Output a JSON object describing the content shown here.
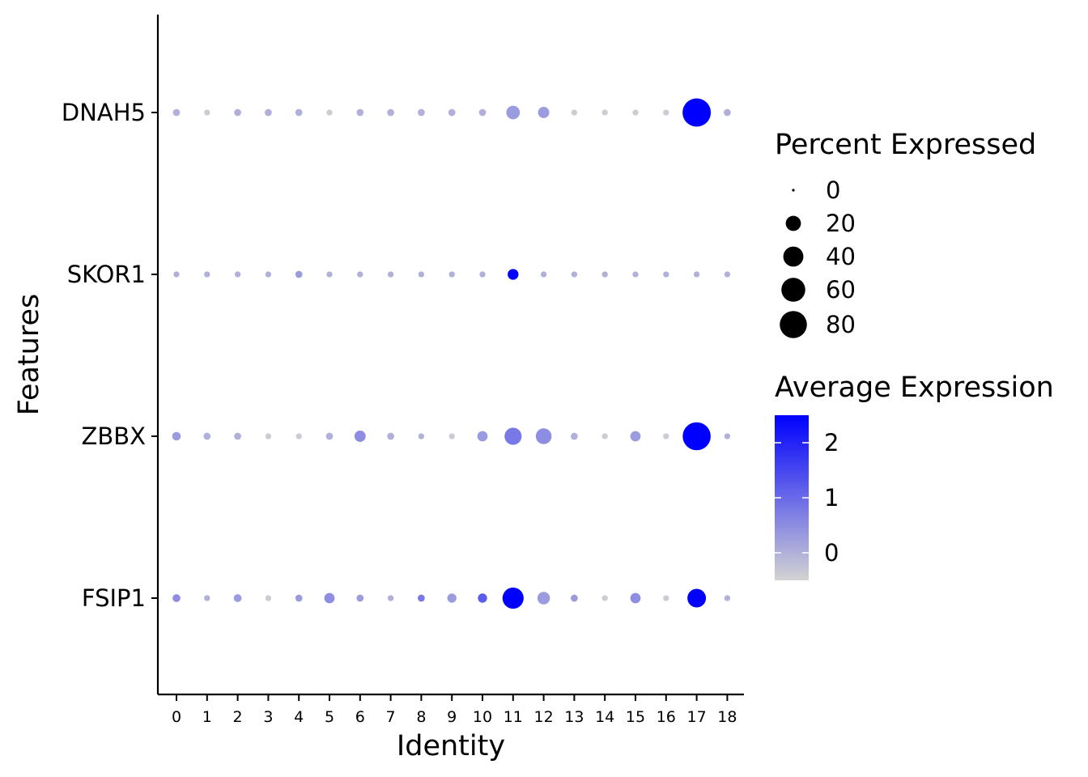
{
  "chart_data": {
    "type": "dot",
    "xlabel": "Identity",
    "ylabel": "Features",
    "categories": [
      "0",
      "1",
      "2",
      "3",
      "4",
      "5",
      "6",
      "7",
      "8",
      "9",
      "10",
      "11",
      "12",
      "13",
      "14",
      "15",
      "16",
      "17",
      "18"
    ],
    "features": [
      "DNAH5",
      "SKOR1",
      "ZBBX",
      "FSIP1"
    ],
    "series": [
      {
        "feature": "DNAH5",
        "percent_expressed": [
          2,
          1,
          2,
          2,
          2,
          1,
          2,
          2,
          2,
          2,
          2,
          15,
          9,
          1,
          1,
          1,
          1,
          88,
          2
        ],
        "average_expression": [
          0,
          -0.4,
          0,
          0,
          0,
          -0.4,
          0,
          0,
          0,
          0,
          0,
          0.3,
          0.3,
          -0.4,
          -0.4,
          -0.4,
          -0.4,
          2.5,
          0
        ]
      },
      {
        "feature": "SKOR1",
        "percent_expressed": [
          1,
          1,
          1,
          1,
          2,
          1,
          1,
          1,
          1,
          1,
          1,
          8,
          1,
          1,
          1,
          1,
          1,
          1,
          1
        ],
        "average_expression": [
          0,
          0,
          0,
          0,
          0.3,
          0,
          0,
          0,
          0,
          0,
          0,
          2.5,
          0,
          0,
          0,
          0,
          0,
          0,
          0
        ]
      },
      {
        "feature": "ZBBX",
        "percent_expressed": [
          4,
          2,
          2,
          1,
          1,
          2,
          9,
          2,
          1,
          1,
          7,
          27,
          22,
          2,
          1,
          7,
          1,
          86,
          1
        ],
        "average_expression": [
          0.3,
          0,
          0,
          -0.4,
          -0.4,
          0,
          0.5,
          0,
          0,
          -0.4,
          0.3,
          0.8,
          0.5,
          0,
          -0.4,
          0.3,
          -0.4,
          2.5,
          0
        ]
      },
      {
        "feature": "FSIP1",
        "percent_expressed": [
          3,
          1,
          3,
          1,
          2,
          7,
          2,
          1,
          2,
          5,
          5,
          45,
          12,
          2,
          1,
          7,
          1,
          33,
          1
        ],
        "average_expression": [
          0.5,
          0,
          0.3,
          -0.4,
          0.3,
          0.5,
          0.3,
          0,
          0.8,
          0.3,
          1.2,
          2.5,
          0.3,
          0.3,
          -0.4,
          0.5,
          -0.4,
          2.5,
          0
        ]
      }
    ],
    "size_legend": {
      "title": "Percent Expressed",
      "entries": [
        "0",
        "20",
        "40",
        "60",
        "80"
      ],
      "values": [
        0,
        20,
        40,
        60,
        80
      ]
    },
    "color_legend": {
      "title": "Average Expression",
      "tick_labels": [
        "2",
        "1",
        "0"
      ],
      "tick_values": [
        2,
        1,
        0
      ],
      "range": [
        -0.5,
        2.5
      ],
      "low_color": "#d3d3d3",
      "high_color": "#0000ff"
    }
  }
}
